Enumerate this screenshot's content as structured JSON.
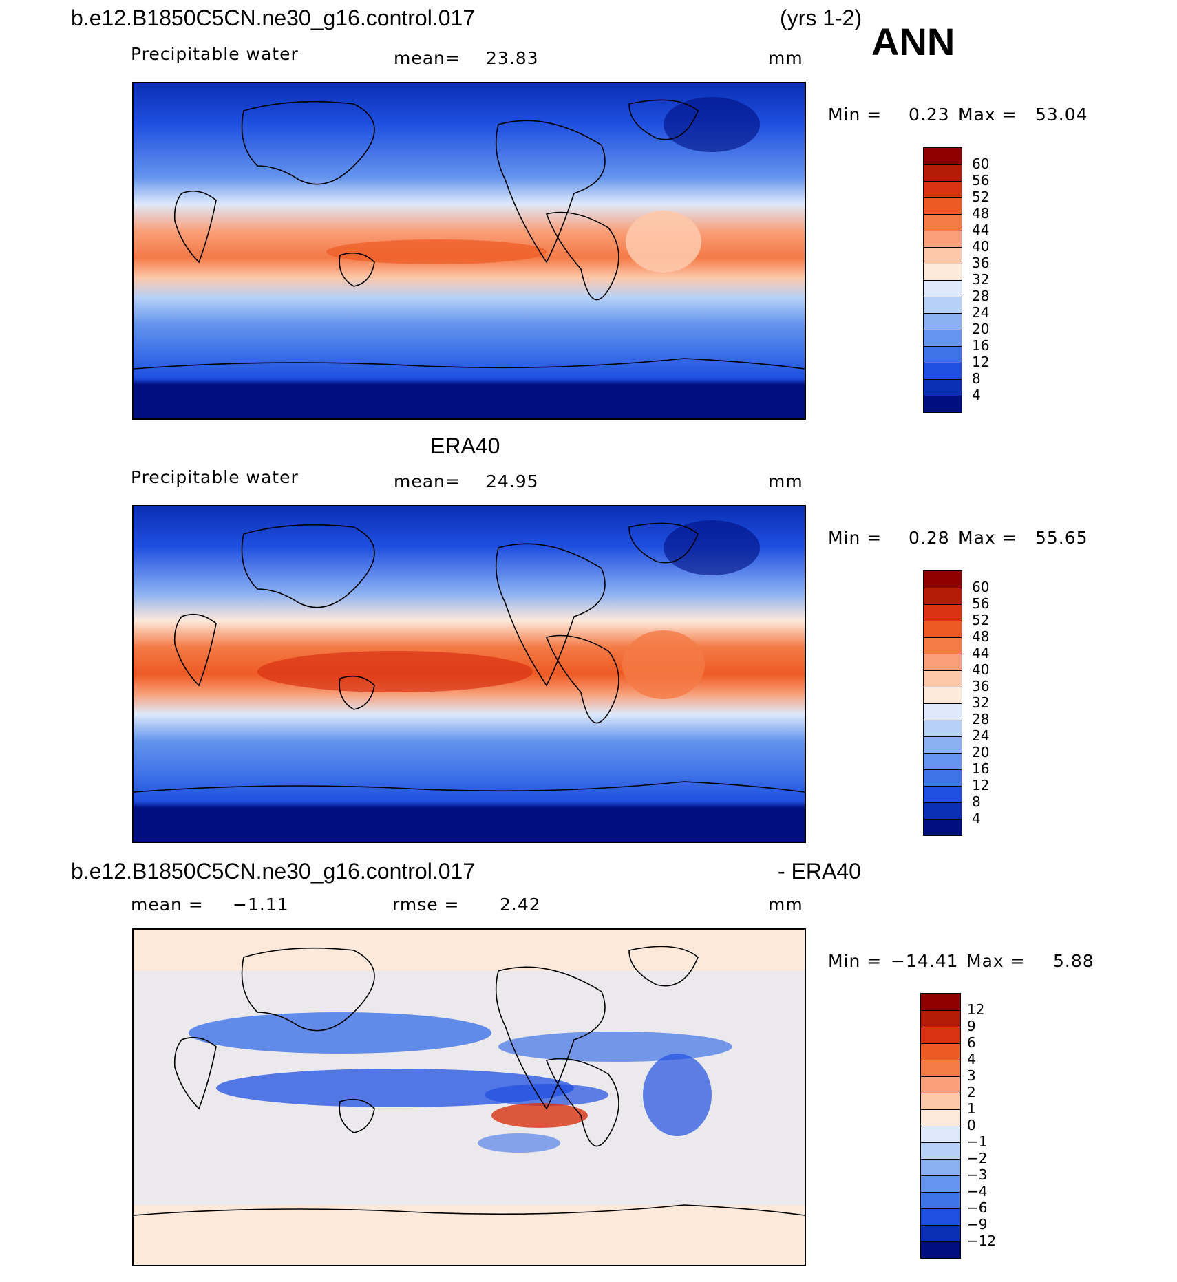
{
  "figure": {
    "case_title": "b.e12.B1850C5CN.ne30_g16.control.017",
    "years": "(yrs 1-2)",
    "season": "ANN"
  },
  "panel1": {
    "variable": "Precipitable water",
    "mean_label": "mean=",
    "mean_value": "23.83",
    "units": "mm",
    "min_label": "Min =",
    "min_value": "0.23",
    "max_label": "Max =",
    "max_value": "53.04"
  },
  "panel2": {
    "title": "ERA40",
    "variable": "Precipitable water",
    "mean_label": "mean=",
    "mean_value": "24.95",
    "units": "mm",
    "min_label": "Min =",
    "min_value": "0.28",
    "max_label": "Max =",
    "max_value": "55.65"
  },
  "panel3": {
    "title_left": "b.e12.B1850C5CN.ne30_g16.control.017",
    "title_right": "- ERA40",
    "mean_label": "mean =",
    "mean_value": "−1.11",
    "rmse_label": "rmse =",
    "rmse_value": "2.42",
    "units": "mm",
    "min_label": "Min =",
    "min_value": "−14.41",
    "max_label": "Max =",
    "max_value": "5.88"
  },
  "colorbars": {
    "abs_levels": [
      "60",
      "56",
      "52",
      "48",
      "44",
      "40",
      "36",
      "32",
      "28",
      "24",
      "20",
      "16",
      "12",
      "8",
      "4"
    ],
    "abs_colors": [
      "#8e0000",
      "#b51c08",
      "#d93212",
      "#ee5a24",
      "#f47a46",
      "#f9a07a",
      "#fdc8aa",
      "#fde9da",
      "#dde9fb",
      "#b6d1f8",
      "#8cb1f3",
      "#6494ed",
      "#3f73e8",
      "#1f4fe0",
      "#0a2fb5",
      "#000f80"
    ],
    "diff_levels": [
      "12",
      "9",
      "6",
      "4",
      "3",
      "2",
      "1",
      "0",
      "−1",
      "−2",
      "−3",
      "−4",
      "−6",
      "−9",
      "−12"
    ],
    "diff_colors": [
      "#8e0000",
      "#b51c08",
      "#d93212",
      "#ee5a24",
      "#f47a46",
      "#f9a07a",
      "#fdc8aa",
      "#fde9da",
      "#dde9fb",
      "#b6d1f8",
      "#8cb1f3",
      "#6494ed",
      "#3f73e8",
      "#1f4fe0",
      "#0a2fb5",
      "#000f80"
    ]
  },
  "maps": {
    "projection": "cylindrical equidistant, centered 180",
    "field_type": "filled contours with coastlines"
  }
}
